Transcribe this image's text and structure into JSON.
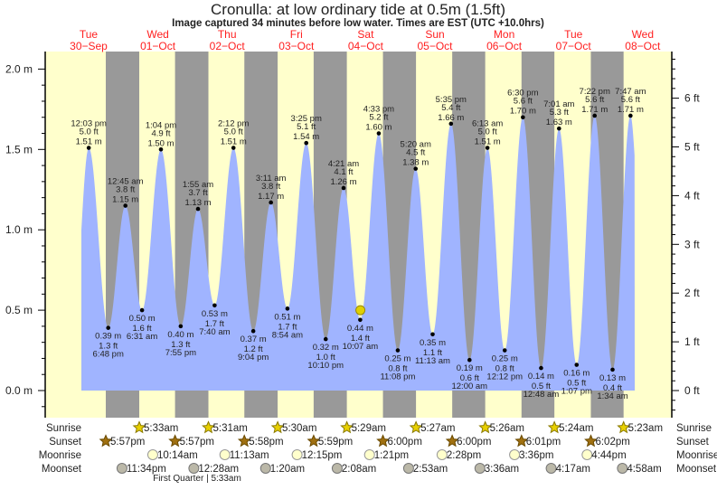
{
  "chart_data": {
    "type": "area",
    "title": "Cronulla: at low  ordinary tide at 0.5m (1.5ft)",
    "subtitle": "Image captured 34 minutes before low water. Times are EST (UTC +10.0hrs)",
    "yunit_left": "m",
    "yunit_right": "ft",
    "ylim_m": [
      -0.17,
      2.1
    ],
    "yticks_m": [
      "0.0 m",
      "0.5 m",
      "1.0 m",
      "1.5 m",
      "2.0 m"
    ],
    "yticks_ft": [
      "0 ft",
      "1 ft",
      "2 ft",
      "3 ft",
      "4 ft",
      "5 ft",
      "6 ft"
    ],
    "days": [
      {
        "dow": "Tue",
        "date": "30−Sep",
        "iso": "2025-09-30"
      },
      {
        "dow": "Wed",
        "date": "01−Oct",
        "iso": "2025-10-01"
      },
      {
        "dow": "Thu",
        "date": "02−Oct",
        "iso": "2025-10-02"
      },
      {
        "dow": "Fri",
        "date": "03−Oct",
        "iso": "2025-10-03"
      },
      {
        "dow": "Sat",
        "date": "04−Oct",
        "iso": "2025-10-04"
      },
      {
        "dow": "Sun",
        "date": "05−Oct",
        "iso": "2025-10-05"
      },
      {
        "dow": "Mon",
        "date": "06−Oct",
        "iso": "2025-10-06"
      },
      {
        "dow": "Tue",
        "date": "07−Oct",
        "iso": "2025-10-07"
      },
      {
        "dow": "Wed",
        "date": "08−Oct",
        "iso": "2025-10-08"
      }
    ],
    "tides": [
      {
        "day": 0,
        "time": "12:03 pm",
        "h": 1.51,
        "m": "1.51 m",
        "ft": "5.0 ft",
        "type": "high"
      },
      {
        "day": 0,
        "time": "6:48 pm",
        "h": 0.39,
        "m": "0.39 m",
        "ft": "1.3 ft",
        "type": "low"
      },
      {
        "day": 1,
        "time": "12:45 am",
        "h": 1.15,
        "m": "1.15 m",
        "ft": "3.8 ft",
        "type": "high"
      },
      {
        "day": 1,
        "time": "6:31 am",
        "h": 0.5,
        "m": "0.50 m",
        "ft": "1.6 ft",
        "type": "low"
      },
      {
        "day": 1,
        "time": "1:04 pm",
        "h": 1.5,
        "m": "1.50 m",
        "ft": "4.9 ft",
        "type": "high"
      },
      {
        "day": 1,
        "time": "7:55 pm",
        "h": 0.4,
        "m": "0.40 m",
        "ft": "1.3 ft",
        "type": "low"
      },
      {
        "day": 2,
        "time": "1:55 am",
        "h": 1.13,
        "m": "1.13 m",
        "ft": "3.7 ft",
        "type": "high"
      },
      {
        "day": 2,
        "time": "7:40 am",
        "h": 0.53,
        "m": "0.53 m",
        "ft": "1.7 ft",
        "type": "low"
      },
      {
        "day": 2,
        "time": "2:12 pm",
        "h": 1.51,
        "m": "1.51 m",
        "ft": "5.0 ft",
        "type": "high"
      },
      {
        "day": 2,
        "time": "9:04 pm",
        "h": 0.37,
        "m": "0.37 m",
        "ft": "1.2 ft",
        "type": "low"
      },
      {
        "day": 3,
        "time": "3:11 am",
        "h": 1.17,
        "m": "1.17 m",
        "ft": "3.8 ft",
        "type": "high"
      },
      {
        "day": 3,
        "time": "8:54 am",
        "h": 0.51,
        "m": "0.51 m",
        "ft": "1.7 ft",
        "type": "low"
      },
      {
        "day": 3,
        "time": "3:25 pm",
        "h": 1.54,
        "m": "1.54 m",
        "ft": "5.1 ft",
        "type": "high"
      },
      {
        "day": 3,
        "time": "10:10 pm",
        "h": 0.32,
        "m": "0.32 m",
        "ft": "1.0 ft",
        "type": "low"
      },
      {
        "day": 4,
        "time": "4:21 am",
        "h": 1.26,
        "m": "1.26 m",
        "ft": "4.1 ft",
        "type": "high"
      },
      {
        "day": 4,
        "time": "10:07 am",
        "h": 0.44,
        "m": "0.44 m",
        "ft": "1.4 ft",
        "type": "low"
      },
      {
        "day": 4,
        "time": "4:33 pm",
        "h": 1.6,
        "m": "1.60 m",
        "ft": "5.2 ft",
        "type": "high"
      },
      {
        "day": 4,
        "time": "11:08 pm",
        "h": 0.25,
        "m": "0.25 m",
        "ft": "0.8 ft",
        "type": "low"
      },
      {
        "day": 5,
        "time": "5:20 am",
        "h": 1.38,
        "m": "1.38 m",
        "ft": "4.5 ft",
        "type": "high"
      },
      {
        "day": 5,
        "time": "11:13 am",
        "h": 0.35,
        "m": "0.35 m",
        "ft": "1.1 ft",
        "type": "low"
      },
      {
        "day": 5,
        "time": "5:35 pm",
        "h": 1.66,
        "m": "1.66 m",
        "ft": "5.4 ft",
        "type": "high"
      },
      {
        "day": 6,
        "time": "12:00 am",
        "h": 0.19,
        "m": "0.19 m",
        "ft": "0.6 ft",
        "type": "low"
      },
      {
        "day": 6,
        "time": "6:13 am",
        "h": 1.51,
        "m": "1.51 m",
        "ft": "5.0 ft",
        "type": "high"
      },
      {
        "day": 6,
        "time": "12:12 pm",
        "h": 0.25,
        "m": "0.25 m",
        "ft": "0.8 ft",
        "type": "low"
      },
      {
        "day": 6,
        "time": "6:30 pm",
        "h": 1.7,
        "m": "1.70 m",
        "ft": "5.6 ft",
        "type": "high"
      },
      {
        "day": 7,
        "time": "12:48 am",
        "h": 0.14,
        "m": "0.14 m",
        "ft": "0.5 ft",
        "type": "low"
      },
      {
        "day": 7,
        "time": "7:01 am",
        "h": 1.63,
        "m": "1.63 m",
        "ft": "5.3 ft",
        "type": "high"
      },
      {
        "day": 7,
        "time": "1:07 pm",
        "h": 0.16,
        "m": "0.16 m",
        "ft": "0.5 ft",
        "type": "low"
      },
      {
        "day": 7,
        "time": "7:22 pm",
        "h": 1.71,
        "m": "1.71 m",
        "ft": "5.6 ft",
        "type": "high"
      },
      {
        "day": 8,
        "time": "1:34 am",
        "h": 0.13,
        "m": "0.13 m",
        "ft": "0.4 ft",
        "type": "low"
      },
      {
        "day": 8,
        "time": "7:47 am",
        "h": 1.71,
        "m": "1.71 m",
        "ft": "5.6 ft",
        "type": "high"
      }
    ],
    "current": {
      "day": 4,
      "time": "9:33 am",
      "h": 0.5
    },
    "colors": {
      "day": "#ffffcc",
      "night": "#999999",
      "water": "#a0b4ff",
      "day_label": "#ff2020",
      "marker": "#e0d000"
    }
  },
  "almanac": {
    "labels": {
      "sunrise": "Sunrise",
      "sunset": "Sunset",
      "moonrise": "Moonrise",
      "moonset": "Moonset"
    },
    "sunrise": [
      {
        "day": 1,
        "time": "5:33am"
      },
      {
        "day": 2,
        "time": "5:31am"
      },
      {
        "day": 3,
        "time": "5:30am"
      },
      {
        "day": 4,
        "time": "5:29am"
      },
      {
        "day": 5,
        "time": "5:27am"
      },
      {
        "day": 6,
        "time": "5:26am"
      },
      {
        "day": 7,
        "time": "5:24am"
      },
      {
        "day": 8,
        "time": "5:23am"
      }
    ],
    "sunset": [
      {
        "day": 0,
        "time": "5:57pm"
      },
      {
        "day": 1,
        "time": "5:57pm"
      },
      {
        "day": 2,
        "time": "5:58pm"
      },
      {
        "day": 3,
        "time": "5:59pm"
      },
      {
        "day": 4,
        "time": "6:00pm"
      },
      {
        "day": 5,
        "time": "6:00pm"
      },
      {
        "day": 6,
        "time": "6:01pm"
      },
      {
        "day": 7,
        "time": "6:02pm"
      }
    ],
    "moonrise": [
      {
        "day": 1,
        "time": "10:14am"
      },
      {
        "day": 2,
        "time": "11:13am"
      },
      {
        "day": 3,
        "time": "12:15pm"
      },
      {
        "day": 4,
        "time": "1:21pm"
      },
      {
        "day": 5,
        "time": "2:28pm"
      },
      {
        "day": 6,
        "time": "3:36pm"
      },
      {
        "day": 7,
        "time": "4:44pm"
      }
    ],
    "moonset": [
      {
        "day": 0,
        "time": "11:34pm"
      },
      {
        "day": 2,
        "time": "12:28am"
      },
      {
        "day": 3,
        "time": "1:20am"
      },
      {
        "day": 4,
        "time": "2:08am"
      },
      {
        "day": 5,
        "time": "2:53am"
      },
      {
        "day": 6,
        "time": "3:36am"
      },
      {
        "day": 7,
        "time": "4:17am"
      },
      {
        "day": 8,
        "time": "4:58am"
      }
    ],
    "moon_phase": {
      "day": 1,
      "time": "5:33am",
      "text": "First Quarter | 5:33am"
    }
  }
}
